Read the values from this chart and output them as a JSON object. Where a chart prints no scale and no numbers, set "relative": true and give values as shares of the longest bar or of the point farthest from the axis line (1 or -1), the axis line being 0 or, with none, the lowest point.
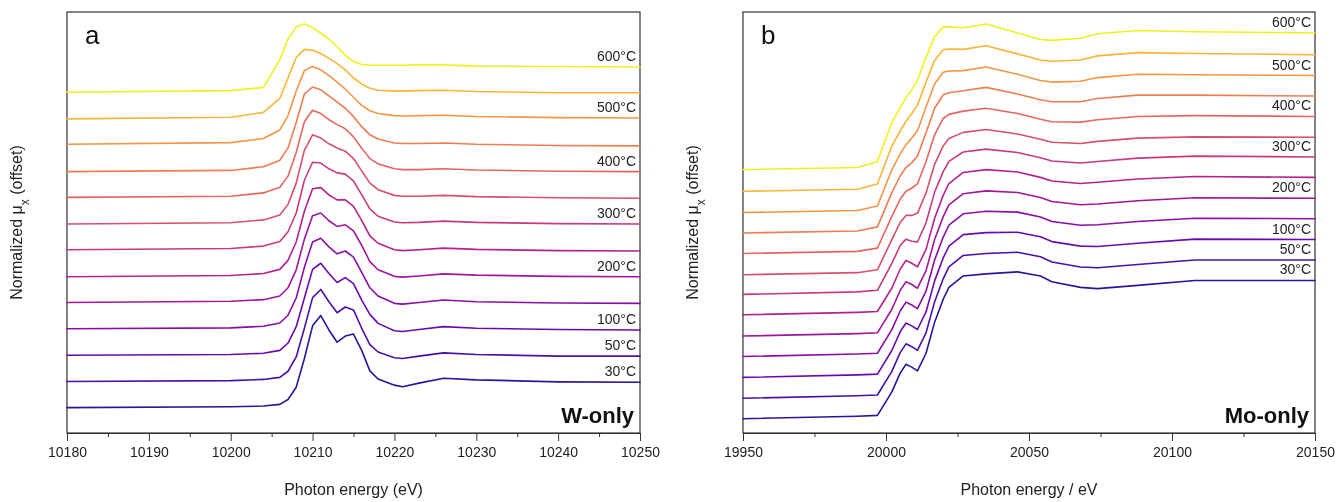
{
  "chart_data": [
    {
      "type": "line",
      "relative": true,
      "tick_labels": "x",
      "xlabel": "Photon energy (eV)",
      "ylabel": "Normalized μ$_{x}$ (offset)",
      "annotations": [
        "a",
        "W-only"
      ],
      "xlim": [
        10180,
        10250
      ],
      "xticks": [
        10180,
        {
          "value": 10185,
          "label": null
        },
        10190,
        {
          "value": 10195,
          "label": null
        },
        10200,
        {
          "value": 10205,
          "label": null
        },
        10210,
        {
          "value": 10215,
          "label": null
        },
        10220,
        {
          "value": 10225,
          "label": null
        },
        10230,
        {
          "value": 10235,
          "label": null
        },
        10240,
        {
          "value": 10245,
          "label": null
        },
        10250
      ],
      "x": [
        10180,
        10200,
        10204,
        10206,
        10207,
        10208,
        10209,
        10210,
        10211,
        10212,
        10213,
        10214,
        10215,
        10216,
        10217,
        10218,
        10220,
        10221,
        10223,
        10226,
        10230,
        10240,
        10250
      ],
      "series": [
        {
          "name": "30°C",
          "color": "#24189a",
          "values": [
            0.062,
            0.064,
            0.066,
            0.07,
            0.082,
            0.112,
            0.182,
            0.262,
            0.287,
            0.252,
            0.222,
            0.237,
            0.242,
            0.202,
            0.152,
            0.132,
            0.117,
            0.113,
            0.122,
            0.134,
            0.13,
            0.125,
            0.124
          ]
        },
        {
          "name": "50°C",
          "color": "#4a10a8",
          "values": [
            0.126,
            0.128,
            0.131,
            0.136,
            0.151,
            0.186,
            0.256,
            0.331,
            0.351,
            0.321,
            0.294,
            0.308,
            0.301,
            0.256,
            0.216,
            0.198,
            0.184,
            0.182,
            0.188,
            0.196,
            0.192,
            0.188,
            0.188
          ]
        },
        {
          "name": "100°C",
          "color": "#6a0aae",
          "values": [
            0.19,
            0.192,
            0.195,
            0.202,
            0.22,
            0.26,
            0.33,
            0.4,
            0.415,
            0.39,
            0.368,
            0.38,
            0.365,
            0.325,
            0.29,
            0.268,
            0.25,
            0.248,
            0.253,
            0.26,
            0.256,
            0.253,
            0.252
          ]
        },
        {
          "color": "#8a0da6",
          "values": [
            0.255,
            0.257,
            0.261,
            0.269,
            0.288,
            0.33,
            0.405,
            0.467,
            0.476,
            0.455,
            0.438,
            0.445,
            0.43,
            0.393,
            0.355,
            0.335,
            0.317,
            0.315,
            0.319,
            0.325,
            0.321,
            0.318,
            0.317
          ]
        },
        {
          "name": "200°C",
          "color": "#a1169c",
          "values": [
            0.319,
            0.322,
            0.326,
            0.335,
            0.355,
            0.399,
            0.474,
            0.531,
            0.538,
            0.519,
            0.505,
            0.509,
            0.494,
            0.459,
            0.419,
            0.399,
            0.383,
            0.381,
            0.384,
            0.389,
            0.386,
            0.383,
            0.382
          ]
        },
        {
          "color": "#b5218f",
          "values": [
            0.382,
            0.385,
            0.39,
            0.4,
            0.422,
            0.467,
            0.542,
            0.597,
            0.6,
            0.582,
            0.57,
            0.57,
            0.554,
            0.52,
            0.482,
            0.464,
            0.448,
            0.446,
            0.448,
            0.452,
            0.449,
            0.446,
            0.445
          ]
        },
        {
          "name": "300°C",
          "color": "#c73a7f",
          "values": [
            0.448,
            0.451,
            0.457,
            0.468,
            0.492,
            0.538,
            0.618,
            0.662,
            0.66,
            0.646,
            0.636,
            0.633,
            0.616,
            0.583,
            0.548,
            0.53,
            0.516,
            0.514,
            0.515,
            0.518,
            0.515,
            0.512,
            0.511
          ]
        },
        {
          "color": "#d84f6f",
          "values": [
            0.511,
            0.514,
            0.521,
            0.533,
            0.559,
            0.611,
            0.691,
            0.729,
            0.721,
            0.707,
            0.697,
            0.689,
            0.671,
            0.641,
            0.611,
            0.595,
            0.581,
            0.579,
            0.579,
            0.581,
            0.578,
            0.575,
            0.574
          ]
        },
        {
          "name": "400°C",
          "color": "#e6665f",
          "values": [
            0.576,
            0.579,
            0.587,
            0.601,
            0.628,
            0.686,
            0.761,
            0.789,
            0.781,
            0.766,
            0.754,
            0.744,
            0.724,
            0.696,
            0.671,
            0.658,
            0.646,
            0.644,
            0.644,
            0.646,
            0.643,
            0.64,
            0.639
          ]
        },
        {
          "color": "#f07c50",
          "values": [
            0.639,
            0.642,
            0.651,
            0.667,
            0.697,
            0.759,
            0.829,
            0.846,
            0.839,
            0.824,
            0.809,
            0.794,
            0.774,
            0.749,
            0.729,
            0.719,
            0.709,
            0.708,
            0.708,
            0.709,
            0.706,
            0.703,
            0.702
          ]
        },
        {
          "name": "500°C",
          "color": "#f79542",
          "values": [
            0.706,
            0.71,
            0.72,
            0.741,
            0.776,
            0.836,
            0.886,
            0.896,
            0.888,
            0.874,
            0.858,
            0.841,
            0.821,
            0.801,
            0.788,
            0.781,
            0.776,
            0.775,
            0.776,
            0.777,
            0.774,
            0.771,
            0.77
          ]
        },
        {
          "color": "#fbb534",
          "values": [
            0.768,
            0.772,
            0.784,
            0.818,
            0.868,
            0.918,
            0.938,
            0.936,
            0.928,
            0.916,
            0.903,
            0.888,
            0.868,
            0.853,
            0.843,
            0.838,
            0.836,
            0.836,
            0.837,
            0.838,
            0.835,
            0.832,
            0.832
          ]
        },
        {
          "name": "600°C",
          "color": "#f0f01e",
          "values": [
            0.833,
            0.837,
            0.845,
            0.913,
            0.963,
            0.993,
            1,
            0.991,
            0.978,
            0.963,
            0.945,
            0.923,
            0.908,
            0.901,
            0.899,
            0.899,
            0.899,
            0.899,
            0.9,
            0.9,
            0.897,
            0.896,
            0.895
          ]
        }
      ]
    },
    {
      "type": "line",
      "relative": true,
      "tick_labels": "x",
      "xlabel": "Photon energy / eV",
      "ylabel": "Normalized μ$_{x}$ (offset)",
      "annotations": [
        "b",
        "Mo-only"
      ],
      "xlim": [
        19950,
        20150
      ],
      "xticks": [
        19950,
        {
          "value": 19975,
          "label": null
        },
        20000,
        {
          "value": 20025,
          "label": null
        },
        20050,
        {
          "value": 20075,
          "label": null
        },
        20100,
        {
          "value": 20125,
          "label": null
        },
        20150
      ],
      "x": [
        19950,
        19990,
        19997,
        20002,
        20005,
        20007,
        20009,
        20011,
        20014,
        20017,
        20020,
        20022,
        20027,
        20035,
        20046,
        20054,
        20058,
        20068,
        20074,
        20088,
        20108,
        20150
      ],
      "series": [
        {
          "name": "30°C",
          "color": "#24189a",
          "values": [
            0.035,
            0.041,
            0.043,
            0.1,
            0.147,
            0.168,
            0.161,
            0.152,
            0.195,
            0.271,
            0.327,
            0.356,
            0.384,
            0.389,
            0.394,
            0.384,
            0.37,
            0.356,
            0.353,
            0.361,
            0.373,
            0.373
          ]
        },
        {
          "name": "50°C",
          "color": "#4a10a8",
          "values": [
            0.085,
            0.091,
            0.093,
            0.15,
            0.197,
            0.218,
            0.211,
            0.202,
            0.245,
            0.321,
            0.377,
            0.406,
            0.434,
            0.439,
            0.442,
            0.431,
            0.418,
            0.406,
            0.404,
            0.412,
            0.423,
            0.423
          ]
        },
        {
          "name": "100°C",
          "color": "#6a0aae",
          "values": [
            0.136,
            0.142,
            0.144,
            0.201,
            0.248,
            0.269,
            0.262,
            0.253,
            0.296,
            0.372,
            0.428,
            0.457,
            0.485,
            0.49,
            0.491,
            0.48,
            0.468,
            0.457,
            0.456,
            0.464,
            0.474,
            0.473
          ]
        },
        {
          "color": "#8a0da6",
          "values": [
            0.187,
            0.193,
            0.195,
            0.252,
            0.299,
            0.32,
            0.313,
            0.304,
            0.347,
            0.423,
            0.479,
            0.508,
            0.536,
            0.542,
            0.54,
            0.528,
            0.517,
            0.508,
            0.509,
            0.517,
            0.525,
            0.524
          ]
        },
        {
          "name": "200°C",
          "color": "#a1169c",
          "values": [
            0.237,
            0.243,
            0.245,
            0.302,
            0.349,
            0.37,
            0.363,
            0.354,
            0.397,
            0.473,
            0.529,
            0.558,
            0.585,
            0.592,
            0.588,
            0.576,
            0.566,
            0.558,
            0.56,
            0.568,
            0.575,
            0.574
          ]
        },
        {
          "color": "#b5218f",
          "values": [
            0.289,
            0.295,
            0.297,
            0.354,
            0.401,
            0.422,
            0.415,
            0.406,
            0.449,
            0.525,
            0.581,
            0.61,
            0.637,
            0.644,
            0.638,
            0.625,
            0.616,
            0.61,
            0.613,
            0.621,
            0.627,
            0.625
          ]
        },
        {
          "name": "300°C",
          "color": "#c73a7f",
          "values": [
            0.339,
            0.345,
            0.349,
            0.414,
            0.459,
            0.474,
            0.469,
            0.467,
            0.514,
            0.589,
            0.639,
            0.664,
            0.687,
            0.694,
            0.686,
            0.673,
            0.665,
            0.66,
            0.664,
            0.672,
            0.677,
            0.675
          ]
        },
        {
          "color": "#d84f6f",
          "values": [
            0.387,
            0.392,
            0.399,
            0.472,
            0.515,
            0.532,
            0.532,
            0.537,
            0.587,
            0.657,
            0.702,
            0.72,
            0.735,
            0.742,
            0.731,
            0.718,
            0.711,
            0.708,
            0.713,
            0.721,
            0.724,
            0.723
          ]
        },
        {
          "name": "400°C",
          "color": "#e6665f",
          "values": [
            0.439,
            0.444,
            0.452,
            0.529,
            0.572,
            0.591,
            0.599,
            0.609,
            0.664,
            0.729,
            0.769,
            0.779,
            0.787,
            0.794,
            0.781,
            0.767,
            0.761,
            0.76,
            0.766,
            0.774,
            0.776,
            0.774
          ]
        },
        {
          "color": "#f07c50",
          "values": [
            0.489,
            0.494,
            0.504,
            0.587,
            0.629,
            0.649,
            0.661,
            0.677,
            0.734,
            0.794,
            0.827,
            0.832,
            0.837,
            0.845,
            0.829,
            0.815,
            0.81,
            0.81,
            0.818,
            0.826,
            0.826,
            0.824
          ]
        },
        {
          "name": "500°C",
          "color": "#f79542",
          "values": [
            0.539,
            0.544,
            0.555,
            0.643,
            0.683,
            0.705,
            0.721,
            0.739,
            0.797,
            0.854,
            0.882,
            0.885,
            0.886,
            0.895,
            0.877,
            0.862,
            0.858,
            0.86,
            0.869,
            0.877,
            0.876,
            0.874
          ]
        },
        {
          "color": "#fbb534",
          "values": [
            0.591,
            0.596,
            0.609,
            0.701,
            0.739,
            0.762,
            0.781,
            0.801,
            0.858,
            0.911,
            0.937,
            0.939,
            0.938,
            0.947,
            0.927,
            0.912,
            0.909,
            0.912,
            0.922,
            0.93,
            0.928,
            0.925
          ]
        },
        {
          "name": "600°C",
          "color": "#f0f01e",
          "values": [
            0.644,
            0.649,
            0.663,
            0.758,
            0.796,
            0.82,
            0.839,
            0.862,
            0.919,
            0.969,
            0.993,
            0.993,
            0.991,
            1,
            0.978,
            0.962,
            0.96,
            0.965,
            0.976,
            0.984,
            0.981,
            0.978
          ]
        }
      ]
    }
  ]
}
